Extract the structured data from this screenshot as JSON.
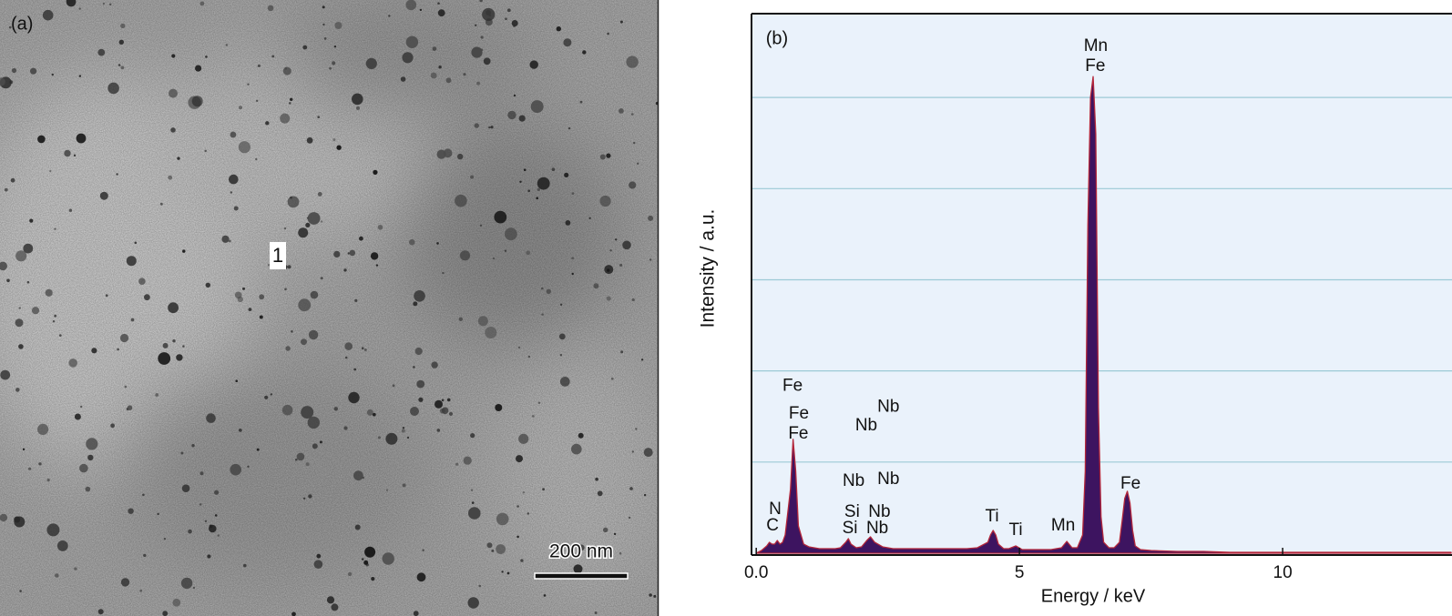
{
  "panel_a": {
    "label": "(a)",
    "marker": "1",
    "scale_bar": "200 nm"
  },
  "chart_data": {
    "type": "area",
    "panel_label": "(b)",
    "x_label": "Energy / keV",
    "y_label": "Intensity / a.u.",
    "x": [
      0,
      0.1,
      0.2,
      0.25,
      0.3,
      0.35,
      0.4,
      0.45,
      0.5,
      0.55,
      0.6,
      0.65,
      0.7,
      0.75,
      0.8,
      0.9,
      1.0,
      1.1,
      1.2,
      1.3,
      1.4,
      1.5,
      1.6,
      1.7,
      1.75,
      1.8,
      1.9,
      2.0,
      2.1,
      2.17,
      2.25,
      2.4,
      2.6,
      2.8,
      3.0,
      3.2,
      3.4,
      3.6,
      3.8,
      4.0,
      4.2,
      4.4,
      4.45,
      4.5,
      4.55,
      4.6,
      4.7,
      4.8,
      4.93,
      5.05,
      5.2,
      5.4,
      5.6,
      5.8,
      5.9,
      6.0,
      6.1,
      6.2,
      6.25,
      6.3,
      6.35,
      6.4,
      6.45,
      6.5,
      6.55,
      6.6,
      6.7,
      6.8,
      6.9,
      6.95,
      7.0,
      7.05,
      7.1,
      7.15,
      7.2,
      7.3,
      7.5,
      8,
      8.5,
      9,
      9.5,
      10,
      10.5,
      11,
      11.5,
      12,
      12.5,
      13,
      13.2
    ],
    "values": [
      0,
      0.03,
      0.08,
      0.12,
      0.1,
      0.1,
      0.14,
      0.1,
      0.12,
      0.2,
      0.45,
      0.7,
      1.25,
      0.9,
      0.3,
      0.1,
      0.07,
      0.06,
      0.05,
      0.05,
      0.05,
      0.05,
      0.06,
      0.12,
      0.16,
      0.1,
      0.06,
      0.07,
      0.14,
      0.18,
      0.12,
      0.07,
      0.05,
      0.05,
      0.05,
      0.05,
      0.05,
      0.05,
      0.05,
      0.05,
      0.06,
      0.12,
      0.2,
      0.25,
      0.2,
      0.1,
      0.05,
      0.05,
      0.08,
      0.04,
      0.04,
      0.04,
      0.04,
      0.06,
      0.13,
      0.06,
      0.06,
      0.2,
      0.9,
      3.6,
      5.0,
      5.23,
      4.6,
      1.6,
      0.4,
      0.12,
      0.06,
      0.06,
      0.12,
      0.35,
      0.6,
      0.68,
      0.55,
      0.25,
      0.08,
      0.04,
      0.03,
      0.02,
      0.02,
      0.01,
      0.01,
      0.01,
      0.01,
      0.01,
      0.01,
      0.01,
      0.01,
      0.01,
      0.01
    ],
    "color": "#3d1460",
    "edge_color": "#b3263a",
    "xlim": [
      -0.09,
      13.2
    ],
    "ylim": [
      0,
      5.92
    ],
    "xticks": [
      {
        "value": 0,
        "label": "0.0"
      },
      5,
      10
    ],
    "yticks": [
      1,
      2,
      3,
      4,
      5
    ],
    "grid": true,
    "annotations": [
      {
        "text": "Mn",
        "x": 6.45,
        "y": 5.56
      },
      {
        "text": "Fe",
        "x": 6.44,
        "y": 5.34
      },
      {
        "text": "Fe",
        "x": 0.69,
        "y": 1.83
      },
      {
        "text": "Fe",
        "x": 0.81,
        "y": 1.53
      },
      {
        "text": "Fe",
        "x": 0.8,
        "y": 1.31
      },
      {
        "text": "Nb",
        "x": 2.51,
        "y": 1.6
      },
      {
        "text": "Nb",
        "x": 2.09,
        "y": 1.4
      },
      {
        "text": "Nb",
        "x": 1.85,
        "y": 0.79
      },
      {
        "text": "Nb",
        "x": 2.51,
        "y": 0.81
      },
      {
        "text": "Si",
        "x": 1.82,
        "y": 0.45
      },
      {
        "text": "Nb",
        "x": 2.34,
        "y": 0.45
      },
      {
        "text": "Si",
        "x": 1.78,
        "y": 0.27
      },
      {
        "text": "Nb",
        "x": 2.3,
        "y": 0.27
      },
      {
        "text": "N",
        "x": 0.36,
        "y": 0.48
      },
      {
        "text": "C",
        "x": 0.31,
        "y": 0.3
      },
      {
        "text": "Ti",
        "x": 4.48,
        "y": 0.4
      },
      {
        "text": "Ti",
        "x": 4.93,
        "y": 0.25
      },
      {
        "text": "Mn",
        "x": 5.83,
        "y": 0.3
      },
      {
        "text": "Fe",
        "x": 7.11,
        "y": 0.76
      }
    ]
  }
}
